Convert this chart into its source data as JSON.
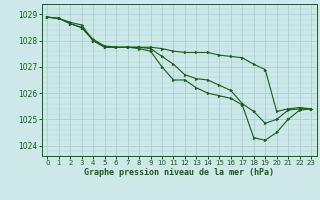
{
  "title": "Graphe pression niveau de la mer (hPa)",
  "bg_color": "#cce8e8",
  "grid_color": "#aed0d0",
  "line_color": "#1a5c1a",
  "marker_color": "#1a5c1a",
  "xlim": [
    -0.5,
    23.5
  ],
  "ylim": [
    1023.6,
    1029.4
  ],
  "yticks": [
    1024,
    1025,
    1026,
    1027,
    1028,
    1029
  ],
  "xticks": [
    0,
    1,
    2,
    3,
    4,
    5,
    6,
    7,
    8,
    9,
    10,
    11,
    12,
    13,
    14,
    15,
    16,
    17,
    18,
    19,
    20,
    21,
    22,
    23
  ],
  "series": [
    [
      1028.9,
      1028.85,
      1028.7,
      1028.6,
      1028.0,
      1027.75,
      1027.75,
      1027.75,
      1027.75,
      1027.75,
      1027.7,
      1027.6,
      1027.55,
      1027.55,
      1027.55,
      1027.45,
      1027.4,
      1027.35,
      1027.1,
      1026.9,
      1025.3,
      1025.4,
      1025.45,
      1025.4
    ],
    [
      1028.9,
      1028.85,
      1028.65,
      1028.5,
      1028.0,
      1027.75,
      1027.75,
      1027.75,
      1027.75,
      1027.7,
      1027.4,
      1027.1,
      1026.7,
      1026.55,
      1026.5,
      1026.3,
      1026.1,
      1025.6,
      1025.3,
      1024.85,
      1025.0,
      1025.35,
      1025.4,
      1025.4
    ],
    [
      1028.9,
      1028.85,
      1028.65,
      1028.5,
      1028.05,
      1027.8,
      1027.75,
      1027.75,
      1027.7,
      1027.6,
      1027.0,
      1026.5,
      1026.5,
      1026.2,
      1026.0,
      1025.9,
      1025.8,
      1025.55,
      1024.3,
      1024.2,
      1024.5,
      1025.0,
      1025.35,
      1025.4
    ]
  ]
}
